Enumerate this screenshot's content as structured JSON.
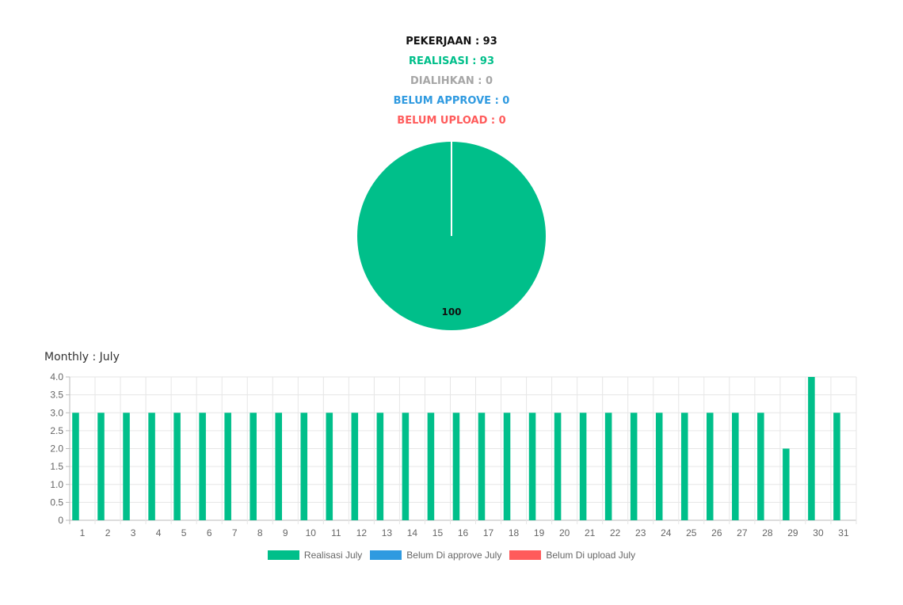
{
  "summary": {
    "pekerjaan": "PEKERJAAN : 93",
    "realisasi": "REALISASI : 93",
    "dialihkan": "DIALIHKAN : 0",
    "belum_approve": "BELUM APPROVE : 0",
    "belum_upload": "BELUM UPLOAD : 0"
  },
  "monthly": {
    "title": "Monthly : July"
  },
  "colors": {
    "pekerjaan": "#111111",
    "realisasi": "#00bf8a",
    "dialihkan": "#a6a6a6",
    "belum_approve": "#2f9ae0",
    "belum_upload": "#ff5b5b"
  },
  "chart_data": [
    {
      "type": "pie",
      "categories": [
        "Realisasi",
        "Dialihkan",
        "Belum Approve",
        "Belum Upload"
      ],
      "values": [
        100,
        0,
        0,
        0
      ],
      "labels": [
        "100"
      ],
      "colors": [
        "#00bf8a",
        "#a6a6a6",
        "#2f9ae0",
        "#ff5b5b"
      ]
    },
    {
      "type": "bar",
      "categories": [
        "1",
        "2",
        "3",
        "4",
        "5",
        "6",
        "7",
        "8",
        "9",
        "10",
        "11",
        "12",
        "13",
        "14",
        "15",
        "16",
        "17",
        "18",
        "19",
        "20",
        "21",
        "22",
        "23",
        "24",
        "25",
        "26",
        "27",
        "28",
        "29",
        "30",
        "31"
      ],
      "series": [
        {
          "name": "Realisasi July",
          "color": "#00bf8a",
          "values": [
            3,
            3,
            3,
            3,
            3,
            3,
            3,
            3,
            3,
            3,
            3,
            3,
            3,
            3,
            3,
            3,
            3,
            3,
            3,
            3,
            3,
            3,
            3,
            3,
            3,
            3,
            3,
            3,
            2,
            4,
            3
          ]
        },
        {
          "name": "Belum Di approve July",
          "color": "#2f9ae0",
          "values": [
            0,
            0,
            0,
            0,
            0,
            0,
            0,
            0,
            0,
            0,
            0,
            0,
            0,
            0,
            0,
            0,
            0,
            0,
            0,
            0,
            0,
            0,
            0,
            0,
            0,
            0,
            0,
            0,
            0,
            0,
            0
          ]
        },
        {
          "name": "Belum Di upload July",
          "color": "#ff5b5b",
          "values": [
            0,
            0,
            0,
            0,
            0,
            0,
            0,
            0,
            0,
            0,
            0,
            0,
            0,
            0,
            0,
            0,
            0,
            0,
            0,
            0,
            0,
            0,
            0,
            0,
            0,
            0,
            0,
            0,
            0,
            0,
            0
          ]
        }
      ],
      "yticks": [
        "0",
        "0.5",
        "1.0",
        "1.5",
        "2.0",
        "2.5",
        "3.0",
        "3.5",
        "4.0"
      ],
      "ylim": [
        0,
        4
      ],
      "grid": true,
      "legend_position": "bottom"
    }
  ]
}
